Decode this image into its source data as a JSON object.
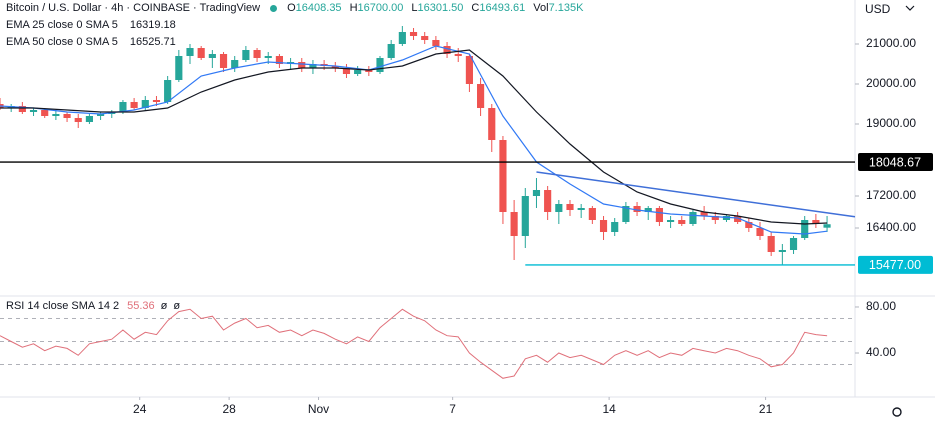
{
  "chart_data": [
    {
      "type": "candlestick",
      "title": "Bitcoin / U.S. Dollar · 4h · COINBASE · TradingView",
      "ohlc_legend": [
        {
          "label": "O",
          "value": "16408.35"
        },
        {
          "label": "H",
          "value": "16700.00"
        },
        {
          "label": "L",
          "value": "16301.50"
        },
        {
          "label": "C",
          "value": "16493.61"
        },
        {
          "label": "Vol",
          "value": "7.135K"
        }
      ],
      "currency": "USD",
      "up_color": "#26a69a",
      "down_color": "#ef5350",
      "ohlc": [
        [
          19500,
          19650,
          19350,
          19400
        ],
        [
          19400,
          19500,
          19300,
          19450
        ],
        [
          19450,
          19550,
          19250,
          19300
        ],
        [
          19300,
          19400,
          19200,
          19350
        ],
        [
          19350,
          19400,
          19150,
          19200
        ],
        [
          19200,
          19350,
          19100,
          19250
        ],
        [
          19250,
          19300,
          19050,
          19150
        ],
        [
          19150,
          19250,
          18900,
          19050
        ],
        [
          19050,
          19250,
          19000,
          19200
        ],
        [
          19200,
          19300,
          19100,
          19250
        ],
        [
          19250,
          19350,
          19150,
          19300
        ],
        [
          19300,
          19600,
          19250,
          19550
        ],
        [
          19550,
          19650,
          19350,
          19400
        ],
        [
          19400,
          19700,
          19350,
          19600
        ],
        [
          19600,
          19700,
          19450,
          19550
        ],
        [
          19550,
          20200,
          19500,
          20100
        ],
        [
          20100,
          20850,
          20050,
          20700
        ],
        [
          20700,
          21000,
          20500,
          20900
        ],
        [
          20900,
          20950,
          20600,
          20650
        ],
        [
          20650,
          20850,
          20400,
          20750
        ],
        [
          20750,
          20800,
          20300,
          20400
        ],
        [
          20400,
          20700,
          20300,
          20600
        ],
        [
          20600,
          20950,
          20550,
          20850
        ],
        [
          20850,
          20900,
          20550,
          20650
        ],
        [
          20650,
          20800,
          20500,
          20700
        ],
        [
          20700,
          20750,
          20400,
          20500
        ],
        [
          20500,
          20650,
          20350,
          20550
        ],
        [
          20550,
          20650,
          20300,
          20400
        ],
        [
          20400,
          20600,
          20250,
          20500
        ],
        [
          20500,
          20600,
          20350,
          20450
        ],
        [
          20450,
          20550,
          20300,
          20400
        ],
        [
          20400,
          20500,
          20150,
          20250
        ],
        [
          20250,
          20450,
          20200,
          20350
        ],
        [
          20350,
          20450,
          20200,
          20300
        ],
        [
          20300,
          20700,
          20250,
          20650
        ],
        [
          20650,
          21100,
          20600,
          21000
        ],
        [
          21000,
          21450,
          20950,
          21300
        ],
        [
          21300,
          21400,
          21100,
          21200
        ],
        [
          21200,
          21300,
          21000,
          21100
        ],
        [
          21100,
          21200,
          20850,
          20950
        ],
        [
          20950,
          21050,
          20650,
          20750
        ],
        [
          20750,
          20900,
          20550,
          20700
        ],
        [
          20700,
          20750,
          19800,
          20000
        ],
        [
          20000,
          20150,
          19200,
          19400
        ],
        [
          19400,
          19500,
          18300,
          18600
        ],
        [
          18600,
          18700,
          16500,
          16800
        ],
        [
          16800,
          17100,
          15600,
          16200
        ],
        [
          16200,
          17400,
          15900,
          17200
        ],
        [
          17200,
          17650,
          16900,
          17350
        ],
        [
          17350,
          17450,
          16600,
          16800
        ],
        [
          16800,
          17100,
          16500,
          17000
        ],
        [
          17000,
          17100,
          16700,
          16850
        ],
        [
          16850,
          17000,
          16650,
          16900
        ],
        [
          16900,
          16950,
          16500,
          16600
        ],
        [
          16600,
          16700,
          16100,
          16300
        ],
        [
          16300,
          16650,
          16200,
          16550
        ],
        [
          16550,
          17050,
          16500,
          16950
        ],
        [
          16950,
          17050,
          16700,
          16800
        ],
        [
          16800,
          16950,
          16600,
          16900
        ],
        [
          16900,
          16950,
          16450,
          16550
        ],
        [
          16550,
          16700,
          16400,
          16600
        ],
        [
          16600,
          16700,
          16450,
          16500
        ],
        [
          16500,
          16850,
          16450,
          16800
        ],
        [
          16800,
          16950,
          16600,
          16700
        ],
        [
          16700,
          16800,
          16500,
          16600
        ],
        [
          16600,
          16750,
          16550,
          16700
        ],
        [
          16700,
          16800,
          16500,
          16550
        ],
        [
          16550,
          16650,
          16300,
          16400
        ],
        [
          16400,
          16550,
          16100,
          16200
        ],
        [
          16200,
          16300,
          15700,
          15800
        ],
        [
          15800,
          16000,
          15480,
          15850
        ],
        [
          15850,
          16200,
          15750,
          16150
        ],
        [
          16150,
          16700,
          16100,
          16600
        ],
        [
          16600,
          16750,
          16400,
          16500
        ],
        [
          16408,
          16700,
          16301,
          16494
        ]
      ],
      "series": [
        {
          "name": "EMA 25 close 0 SMA 5",
          "value_label": "16319.18",
          "color": "#3179f5",
          "x": [
            0,
            3,
            6,
            9,
            12,
            15,
            18,
            21,
            24,
            27,
            30,
            33,
            36,
            39,
            42,
            45,
            48,
            51,
            54,
            57,
            60,
            63,
            66,
            69,
            72,
            74
          ],
          "values": [
            19450,
            19400,
            19300,
            19250,
            19350,
            19550,
            20200,
            20400,
            20550,
            20500,
            20450,
            20350,
            20600,
            20950,
            20750,
            19200,
            18050,
            17500,
            17000,
            16850,
            16750,
            16700,
            16650,
            16300,
            16250,
            16319
          ]
        },
        {
          "name": "EMA 50 close 0 SMA 5",
          "value_label": "16525.71",
          "color": "#131722",
          "x": [
            0,
            3,
            6,
            9,
            12,
            15,
            18,
            21,
            24,
            27,
            30,
            33,
            36,
            39,
            42,
            45,
            48,
            51,
            54,
            57,
            60,
            63,
            66,
            69,
            72,
            74
          ],
          "values": [
            19400,
            19400,
            19350,
            19300,
            19300,
            19400,
            19800,
            20100,
            20300,
            20400,
            20400,
            20350,
            20450,
            20750,
            20850,
            20200,
            19300,
            18500,
            17800,
            17300,
            17000,
            16800,
            16700,
            16550,
            16500,
            16526
          ]
        }
      ],
      "levels": [
        {
          "value": 18048.67,
          "label": "18048.67",
          "color": "#000000",
          "from": 0
        },
        {
          "value": 15477,
          "label": "15477.00",
          "color": "#00bcd4",
          "from": 47
        }
      ],
      "trendline": {
        "color": "#3f6fd8",
        "x": [
          48,
          76.5
        ],
        "values": [
          17800,
          16680
        ]
      },
      "xlim": [
        0,
        76.5
      ],
      "ylim": [
        14725,
        22100
      ],
      "yticks": [
        {
          "value": 16400,
          "label": "16400.00"
        },
        {
          "value": 17200,
          "label": "17200.00"
        },
        {
          "value": 19000,
          "label": "19000.00"
        },
        {
          "value": 20000,
          "label": "20000.00"
        },
        {
          "value": 21000,
          "label": "21000.00"
        }
      ],
      "xticks": [
        {
          "value": 12.5,
          "label": "24"
        },
        {
          "value": 20.5,
          "label": "28"
        },
        {
          "value": 28.5,
          "label": "Nov"
        },
        {
          "value": 40.5,
          "label": "7"
        },
        {
          "value": 54.5,
          "label": "14"
        },
        {
          "value": 68.5,
          "label": "21"
        }
      ]
    },
    {
      "type": "line",
      "title": "RSI 14 close SMA 14 2",
      "legend_values": [
        "55.36",
        "ø",
        "ø"
      ],
      "color": "#e0707a",
      "values": [
        55,
        50,
        45,
        48,
        42,
        46,
        44,
        38,
        48,
        50,
        52,
        60,
        52,
        58,
        56,
        68,
        76,
        78,
        70,
        72,
        60,
        66,
        70,
        62,
        64,
        58,
        60,
        55,
        60,
        57,
        52,
        48,
        54,
        50,
        62,
        70,
        78,
        72,
        68,
        60,
        55,
        54,
        40,
        32,
        25,
        18,
        20,
        35,
        38,
        32,
        40,
        36,
        38,
        34,
        30,
        38,
        42,
        38,
        42,
        36,
        40,
        38,
        44,
        42,
        40,
        44,
        42,
        38,
        35,
        28,
        30,
        40,
        58,
        56,
        55
      ],
      "levels": [
        70,
        50,
        30
      ],
      "xlim": [
        0,
        76.5
      ],
      "ylim": [
        3.5,
        87.8
      ],
      "yticks": [
        {
          "value": 80,
          "label": "80.00"
        },
        {
          "value": 40,
          "label": "40.00"
        }
      ]
    }
  ]
}
